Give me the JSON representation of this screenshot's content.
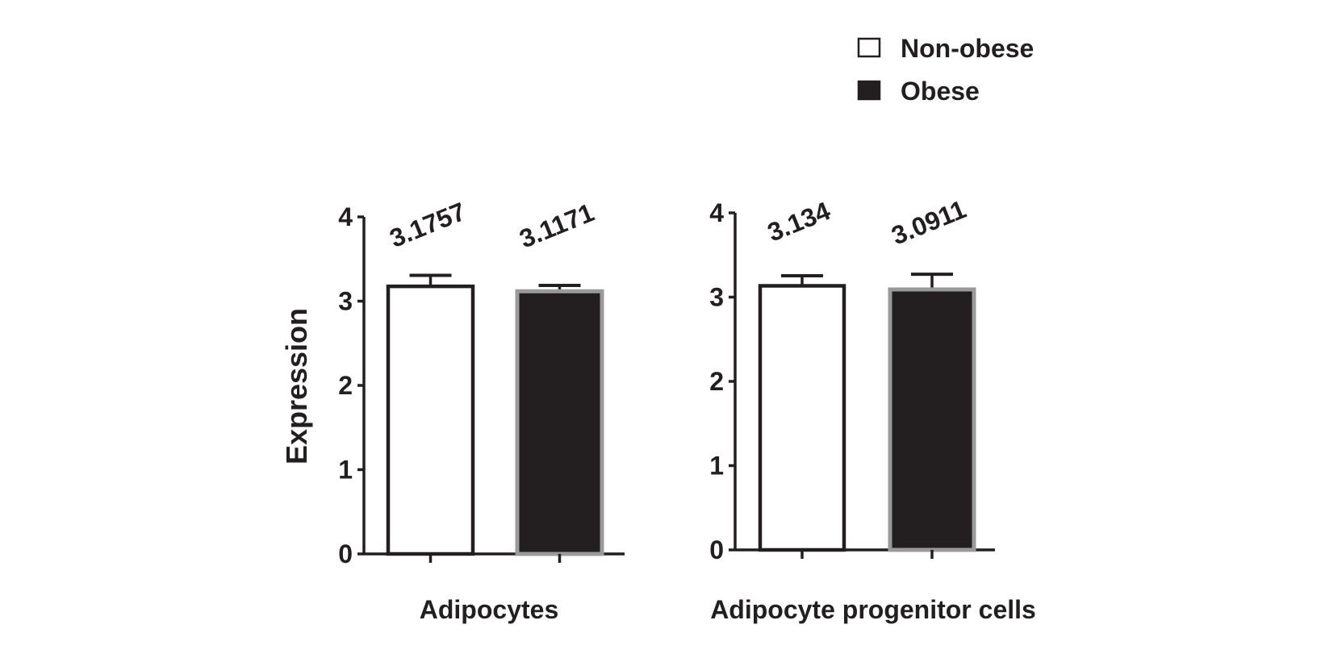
{
  "legend": {
    "items": [
      {
        "label": "Non-obese",
        "fill": "#ffffff",
        "stroke": "#231f20"
      },
      {
        "label": "Obese",
        "fill": "#231f20",
        "stroke": "#231f20"
      }
    ]
  },
  "colors": {
    "ink": "#231f20",
    "obese_fill": "#231f20",
    "obese_border": "#9a9a9a",
    "nonobese_fill": "#ffffff"
  },
  "chart_data": [
    {
      "type": "bar",
      "ylabel": "Expression",
      "xlabel": "Adipocytes",
      "ylim": [
        0,
        4
      ],
      "yticks": [
        0,
        1,
        2,
        3,
        4
      ],
      "series": [
        {
          "name": "Non-obese",
          "values": [
            3.1757
          ],
          "error": [
            0.13
          ],
          "value_label": "3.1757"
        },
        {
          "name": "Obese",
          "values": [
            3.1171
          ],
          "error": [
            0.07
          ],
          "value_label": "3.1171"
        }
      ]
    },
    {
      "type": "bar",
      "ylabel": "",
      "xlabel": "Adipocyte progenitor cells",
      "ylim": [
        0,
        4
      ],
      "yticks": [
        0,
        1,
        2,
        3,
        4
      ],
      "series": [
        {
          "name": "Non-obese",
          "values": [
            3.134
          ],
          "error": [
            0.12
          ],
          "value_label": "3.134"
        },
        {
          "name": "Obese",
          "values": [
            3.0911
          ],
          "error": [
            0.18
          ],
          "value_label": "3.0911"
        }
      ]
    }
  ]
}
